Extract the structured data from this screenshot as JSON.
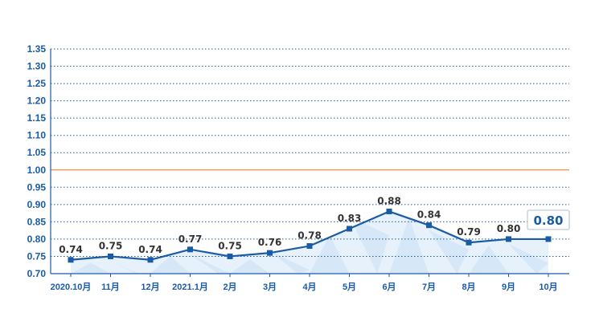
{
  "chart_data": {
    "type": "line",
    "categories": [
      "2020.10月",
      "11月",
      "12月",
      "2021.1月",
      "2月",
      "3月",
      "4月",
      "5月",
      "6月",
      "7月",
      "8月",
      "9月",
      "10月"
    ],
    "series": [
      {
        "values": [
          0.74,
          0.75,
          0.74,
          0.77,
          0.75,
          0.76,
          0.78,
          0.83,
          0.88,
          0.84,
          0.79,
          0.8,
          0.8
        ]
      }
    ],
    "data_labels": [
      "0.74",
      "0.75",
      "0.74",
      "0.77",
      "0.75",
      "0.76",
      "0.78",
      "0.83",
      "0.88",
      "0.84",
      "0.79",
      "0.80",
      "0.80"
    ],
    "y_ticks": [
      "0.70",
      "0.75",
      "0.80",
      "0.85",
      "0.90",
      "0.95",
      "1.00",
      "1.05",
      "1.10",
      "1.15",
      "1.20",
      "1.25",
      "1.30",
      "1.35"
    ],
    "ylim": [
      0.7,
      1.35
    ],
    "reference_line": 1.0,
    "grid": true,
    "colors": {
      "line": "#1a5ba6",
      "marker": "#1a5ba6",
      "grid": "#1a5ba6",
      "reference": "#f08a3c",
      "tick_text": "#1a5ba6",
      "label_text": "#333333",
      "fill_light": "#e6f1fb",
      "fill_dark": "#c9dff5"
    }
  }
}
